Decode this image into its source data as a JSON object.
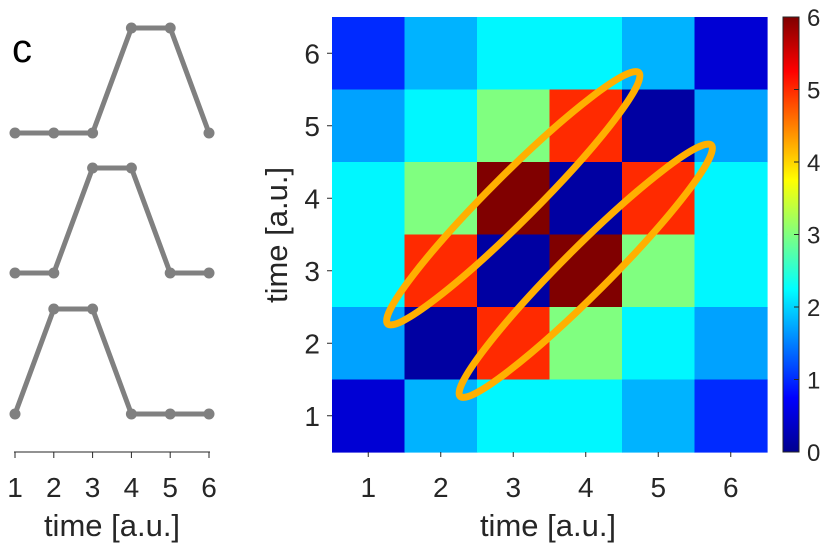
{
  "panel_label": "c",
  "chart_data": [
    {
      "type": "line",
      "title": "",
      "xlabel": "time [a.u.]",
      "ylabel": "",
      "x": [
        1,
        2,
        3,
        4,
        5,
        6
      ],
      "x_ticks": [
        "1",
        "2",
        "3",
        "4",
        "5",
        "6"
      ],
      "series": [
        {
          "values": [
            0,
            0,
            0,
            1,
            1,
            0
          ]
        },
        {
          "values": [
            0,
            0,
            1,
            1,
            0,
            0
          ]
        },
        {
          "values": [
            0,
            1,
            1,
            0,
            0,
            0
          ]
        }
      ],
      "line_color": "#808080"
    },
    {
      "type": "heatmap",
      "title": "",
      "xlabel": "time [a.u.]",
      "ylabel": "time [a.u.]",
      "x": [
        1,
        2,
        3,
        4,
        5,
        6
      ],
      "y": [
        1,
        2,
        3,
        4,
        5,
        6
      ],
      "x_ticks": [
        "1",
        "2",
        "3",
        "4",
        "5",
        "6"
      ],
      "y_ticks": [
        "1",
        "2",
        "3",
        "4",
        "5",
        "6"
      ],
      "rows_top_to_bottom": [
        [
          1.0,
          1.8,
          2.2,
          2.2,
          1.8,
          0.5
        ],
        [
          1.7,
          2.2,
          3.0,
          5.0,
          0.2,
          1.7
        ],
        [
          2.2,
          3.0,
          6.0,
          0.2,
          5.0,
          2.2
        ],
        [
          2.2,
          5.0,
          0.2,
          6.0,
          3.0,
          2.2
        ],
        [
          1.7,
          0.2,
          5.0,
          3.0,
          2.2,
          1.7
        ],
        [
          0.5,
          1.8,
          2.2,
          2.2,
          1.8,
          1.0
        ]
      ],
      "colormap": "jet",
      "colorbar": {
        "min": 0,
        "max": 6,
        "ticks": [
          "0",
          "1",
          "2",
          "3",
          "4",
          "5",
          "6"
        ]
      },
      "highlight_color": "#FFB000"
    }
  ]
}
